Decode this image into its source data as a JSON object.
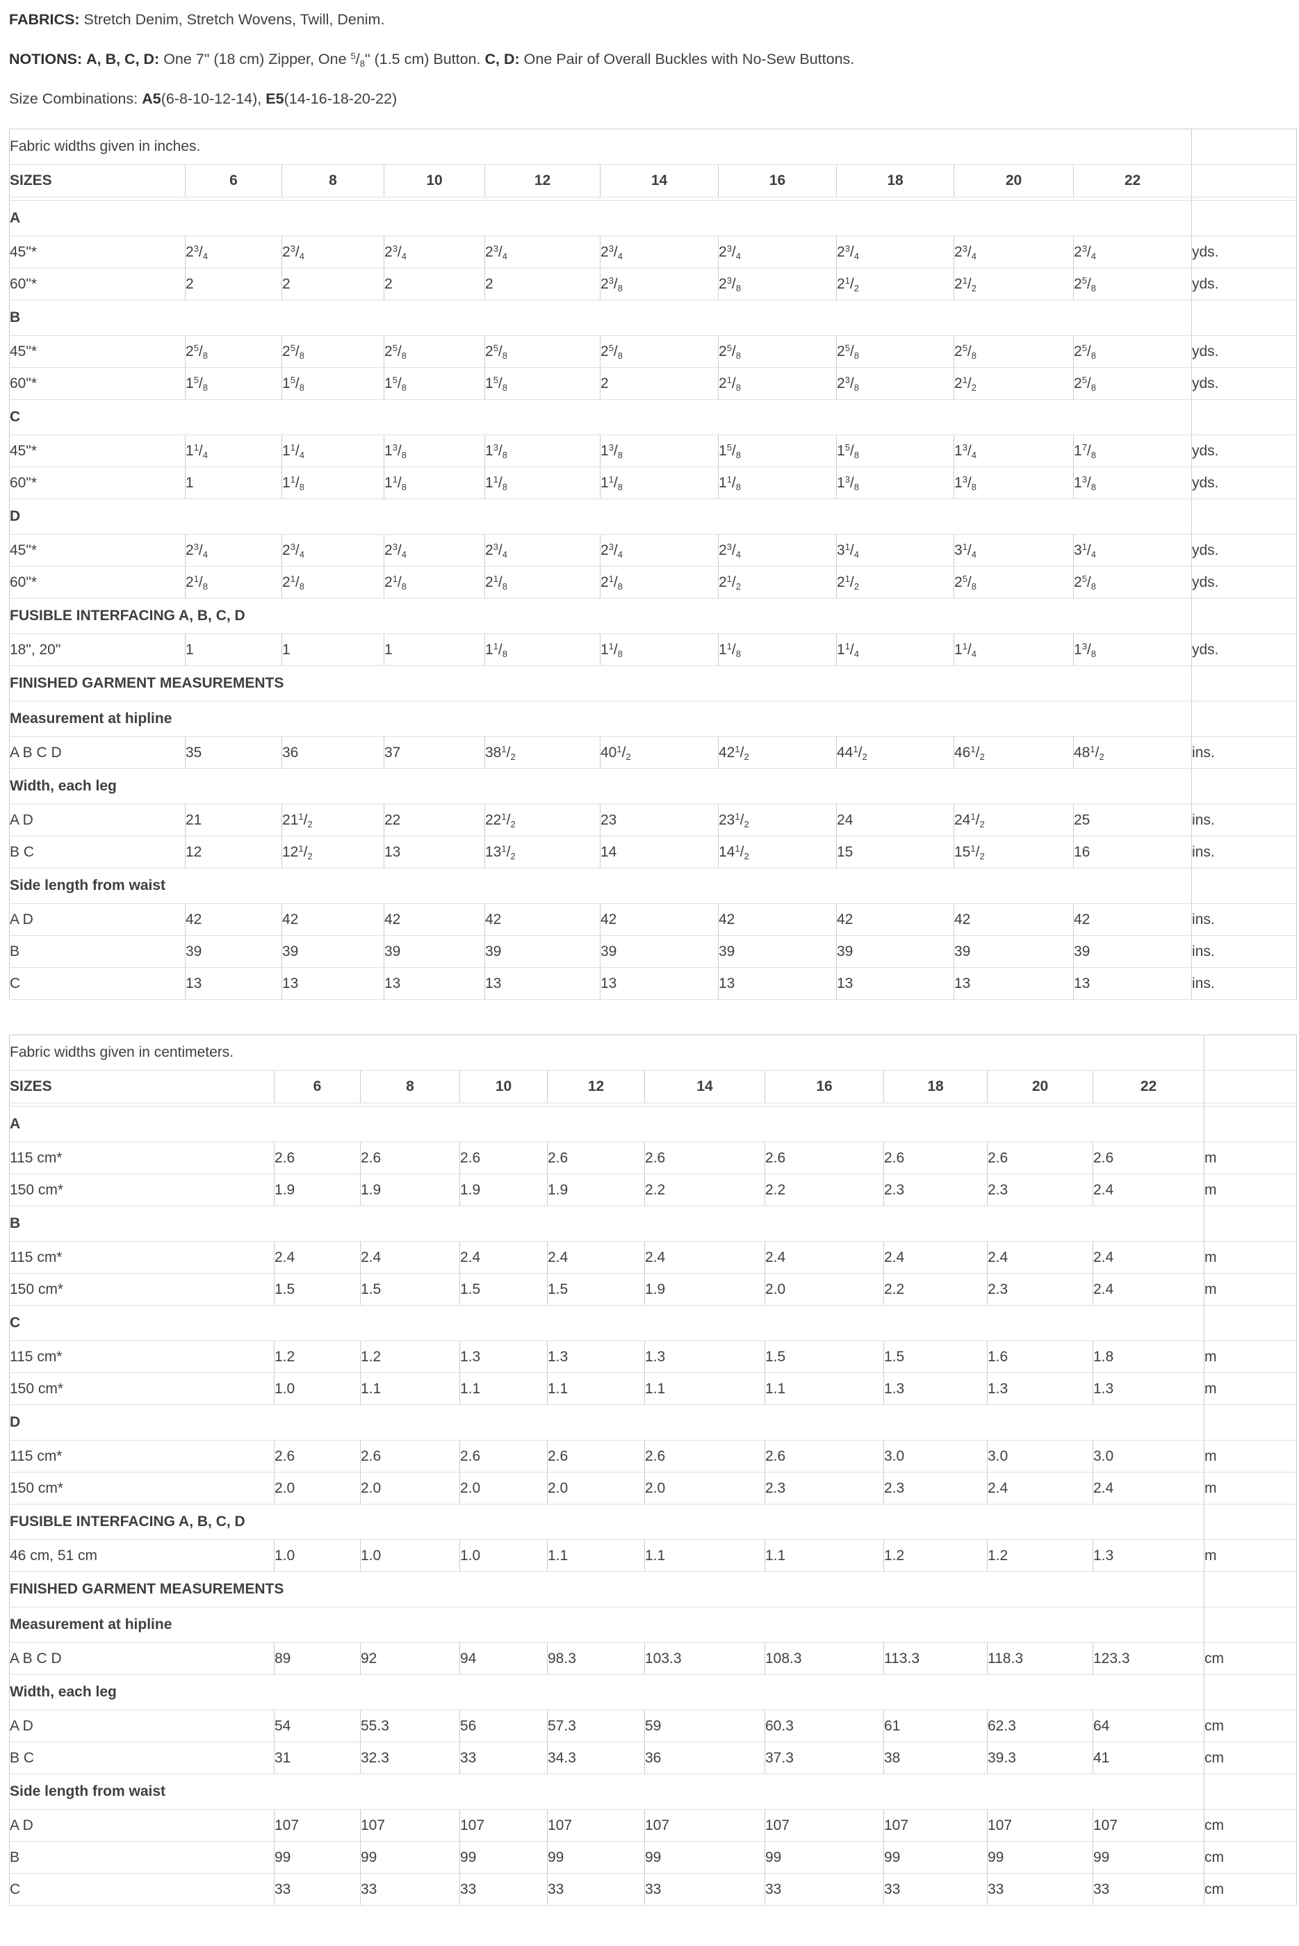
{
  "theme": {
    "text_color": "#3f3f3f",
    "heading_color": "#323232",
    "border_color": "#cccccc",
    "border_light_color": "#dfdfdf",
    "background_color": "#ffffff"
  },
  "intro": {
    "fabrics": {
      "label": "FABRICS:",
      "text": "Stretch Denim, Stretch Wovens, Twill, Denim."
    },
    "notions": {
      "label": "NOTIONS:",
      "views1": "A, B, C, D:",
      "text1": "One 7\" (18 cm) Zipper, One ",
      "fraction": "5/8",
      "text2": "\" (1.5 cm) Button.",
      "views2": "C, D:",
      "text3": "One Pair of Overall Buckles with No-Sew Buttons."
    },
    "size_combinations": {
      "prefix": "Size Combinations: ",
      "combo1": "A5",
      "combo1_sizes": "(6-8-10-12-14), ",
      "combo2": "E5",
      "combo2_sizes": "(14-16-18-20-22)"
    }
  },
  "tables": [
    {
      "id": "inches",
      "caption": "Fabric widths given in inches.",
      "sizes_header": {
        "label": "SIZES",
        "sizes": [
          "6",
          "8",
          "10",
          "12",
          "14",
          "16",
          "18",
          "20",
          "22"
        ]
      },
      "rows": [
        {
          "type": "section",
          "label": "A"
        },
        {
          "type": "data",
          "label": "45\"*",
          "values": [
            "2 3/4",
            "2 3/4",
            "2 3/4",
            "2 3/4",
            "2 3/4",
            "2 3/4",
            "2 3/4",
            "2 3/4",
            "2 3/4"
          ],
          "unit": "yds."
        },
        {
          "type": "data",
          "label": "60\"*",
          "values": [
            "2",
            "2",
            "2",
            "2",
            "2 3/8",
            "2 3/8",
            "2 1/2",
            "2 1/2",
            "2 5/8"
          ],
          "unit": "yds."
        },
        {
          "type": "section",
          "label": "B"
        },
        {
          "type": "data",
          "label": "45\"*",
          "values": [
            "2 5/8",
            "2 5/8",
            "2 5/8",
            "2 5/8",
            "2 5/8",
            "2 5/8",
            "2 5/8",
            "2 5/8",
            "2 5/8"
          ],
          "unit": "yds."
        },
        {
          "type": "data",
          "label": "60\"*",
          "values": [
            "1 5/8",
            "1 5/8",
            "1 5/8",
            "1 5/8",
            "2",
            "2 1/8",
            "2 3/8",
            "2 1/2",
            "2 5/8"
          ],
          "unit": "yds."
        },
        {
          "type": "section",
          "label": "C"
        },
        {
          "type": "data",
          "label": "45\"*",
          "values": [
            "1 1/4",
            "1 1/4",
            "1 3/8",
            "1 3/8",
            "1 3/8",
            "1 5/8",
            "1 5/8",
            "1 3/4",
            "1 7/8"
          ],
          "unit": "yds."
        },
        {
          "type": "data",
          "label": "60\"*",
          "values": [
            "1",
            "1 1/8",
            "1 1/8",
            "1 1/8",
            "1 1/8",
            "1 1/8",
            "1 3/8",
            "1 3/8",
            "1 3/8"
          ],
          "unit": "yds."
        },
        {
          "type": "section",
          "label": "D"
        },
        {
          "type": "data",
          "label": "45\"*",
          "values": [
            "2 3/4",
            "2 3/4",
            "2 3/4",
            "2 3/4",
            "2 3/4",
            "2 3/4",
            "3 1/4",
            "3 1/4",
            "3 1/4"
          ],
          "unit": "yds."
        },
        {
          "type": "data",
          "label": "60\"*",
          "values": [
            "2 1/8",
            "2 1/8",
            "2 1/8",
            "2 1/8",
            "2 1/8",
            "2 1/2",
            "2 1/2",
            "2 5/8",
            "2 5/8"
          ],
          "unit": "yds."
        },
        {
          "type": "section",
          "label": "FUSIBLE INTERFACING A, B, C, D"
        },
        {
          "type": "data",
          "label": "18\", 20\"",
          "values": [
            "1",
            "1",
            "1",
            "1 1/8",
            "1 1/8",
            "1 1/8",
            "1 1/4",
            "1 1/4",
            "1 3/8"
          ],
          "unit": "yds."
        },
        {
          "type": "section",
          "label": "FINISHED GARMENT MEASUREMENTS"
        },
        {
          "type": "section",
          "label": "Measurement at hipline"
        },
        {
          "type": "data",
          "label": "A B C D",
          "values": [
            "35",
            "36",
            "37",
            "38 1/2",
            "40 1/2",
            "42 1/2",
            "44 1/2",
            "46 1/2",
            "48 1/2"
          ],
          "unit": "ins."
        },
        {
          "type": "section",
          "label": "Width, each leg"
        },
        {
          "type": "data",
          "label": "A D",
          "values": [
            "21",
            "21 1/2",
            "22",
            "22 1/2",
            "23",
            "23 1/2",
            "24",
            "24 1/2",
            "25"
          ],
          "unit": "ins."
        },
        {
          "type": "data",
          "label": "B C",
          "values": [
            "12",
            "12 1/2",
            "13",
            "13 1/2",
            "14",
            "14 1/2",
            "15",
            "15 1/2",
            "16"
          ],
          "unit": "ins."
        },
        {
          "type": "section",
          "label": "Side length from waist"
        },
        {
          "type": "data",
          "label": "A D",
          "values": [
            "42",
            "42",
            "42",
            "42",
            "42",
            "42",
            "42",
            "42",
            "42"
          ],
          "unit": "ins."
        },
        {
          "type": "data",
          "label": "B",
          "values": [
            "39",
            "39",
            "39",
            "39",
            "39",
            "39",
            "39",
            "39",
            "39"
          ],
          "unit": "ins."
        },
        {
          "type": "data",
          "label": "C",
          "values": [
            "13",
            "13",
            "13",
            "13",
            "13",
            "13",
            "13",
            "13",
            "13"
          ],
          "unit": "ins."
        }
      ]
    },
    {
      "id": "centimeters",
      "caption": "Fabric widths given in centimeters.",
      "sizes_header": {
        "label": "SIZES",
        "sizes": [
          "6",
          "8",
          "10",
          "12",
          "14",
          "16",
          "18",
          "20",
          "22"
        ]
      },
      "rows": [
        {
          "type": "section",
          "label": "A"
        },
        {
          "type": "data",
          "label": "115 cm*",
          "values": [
            "2.6",
            "2.6",
            "2.6",
            "2.6",
            "2.6",
            "2.6",
            "2.6",
            "2.6",
            "2.6"
          ],
          "unit": "m"
        },
        {
          "type": "data",
          "label": "150 cm*",
          "values": [
            "1.9",
            "1.9",
            "1.9",
            "1.9",
            "2.2",
            "2.2",
            "2.3",
            "2.3",
            "2.4"
          ],
          "unit": "m"
        },
        {
          "type": "section",
          "label": "B"
        },
        {
          "type": "data",
          "label": "115 cm*",
          "values": [
            "2.4",
            "2.4",
            "2.4",
            "2.4",
            "2.4",
            "2.4",
            "2.4",
            "2.4",
            "2.4"
          ],
          "unit": "m"
        },
        {
          "type": "data",
          "label": "150 cm*",
          "values": [
            "1.5",
            "1.5",
            "1.5",
            "1.5",
            "1.9",
            "2.0",
            "2.2",
            "2.3",
            "2.4"
          ],
          "unit": "m"
        },
        {
          "type": "section",
          "label": "C"
        },
        {
          "type": "data",
          "label": "115 cm*",
          "values": [
            "1.2",
            "1.2",
            "1.3",
            "1.3",
            "1.3",
            "1.5",
            "1.5",
            "1.6",
            "1.8"
          ],
          "unit": "m"
        },
        {
          "type": "data",
          "label": "150 cm*",
          "values": [
            "1.0",
            "1.1",
            "1.1",
            "1.1",
            "1.1",
            "1.1",
            "1.3",
            "1.3",
            "1.3"
          ],
          "unit": "m"
        },
        {
          "type": "section",
          "label": "D"
        },
        {
          "type": "data",
          "label": "115 cm*",
          "values": [
            "2.6",
            "2.6",
            "2.6",
            "2.6",
            "2.6",
            "2.6",
            "3.0",
            "3.0",
            "3.0"
          ],
          "unit": "m"
        },
        {
          "type": "data",
          "label": "150 cm*",
          "values": [
            "2.0",
            "2.0",
            "2.0",
            "2.0",
            "2.0",
            "2.3",
            "2.3",
            "2.4",
            "2.4"
          ],
          "unit": "m"
        },
        {
          "type": "section",
          "label": "FUSIBLE INTERFACING A, B, C, D"
        },
        {
          "type": "data",
          "label": "46 cm, 51 cm",
          "values": [
            "1.0",
            "1.0",
            "1.0",
            "1.1",
            "1.1",
            "1.1",
            "1.2",
            "1.2",
            "1.3"
          ],
          "unit": "m"
        },
        {
          "type": "section",
          "label": "FINISHED GARMENT MEASUREMENTS"
        },
        {
          "type": "section",
          "label": "Measurement at hipline"
        },
        {
          "type": "data",
          "label": "A B C D",
          "values": [
            "89",
            "92",
            "94",
            "98.3",
            "103.3",
            "108.3",
            "113.3",
            "118.3",
            "123.3"
          ],
          "unit": "cm"
        },
        {
          "type": "section",
          "label": "Width, each leg"
        },
        {
          "type": "data",
          "label": "A D",
          "values": [
            "54",
            "55.3",
            "56",
            "57.3",
            "59",
            "60.3",
            "61",
            "62.3",
            "64"
          ],
          "unit": "cm"
        },
        {
          "type": "data",
          "label": "B C",
          "values": [
            "31",
            "32.3",
            "33",
            "34.3",
            "36",
            "37.3",
            "38",
            "39.3",
            "41"
          ],
          "unit": "cm"
        },
        {
          "type": "section",
          "label": "Side length from waist"
        },
        {
          "type": "data",
          "label": "A D",
          "values": [
            "107",
            "107",
            "107",
            "107",
            "107",
            "107",
            "107",
            "107",
            "107"
          ],
          "unit": "cm"
        },
        {
          "type": "data",
          "label": "B",
          "values": [
            "99",
            "99",
            "99",
            "99",
            "99",
            "99",
            "99",
            "99",
            "99"
          ],
          "unit": "cm"
        },
        {
          "type": "data",
          "label": "C",
          "values": [
            "33",
            "33",
            "33",
            "33",
            "33",
            "33",
            "33",
            "33",
            "33"
          ],
          "unit": "cm"
        }
      ]
    }
  ]
}
